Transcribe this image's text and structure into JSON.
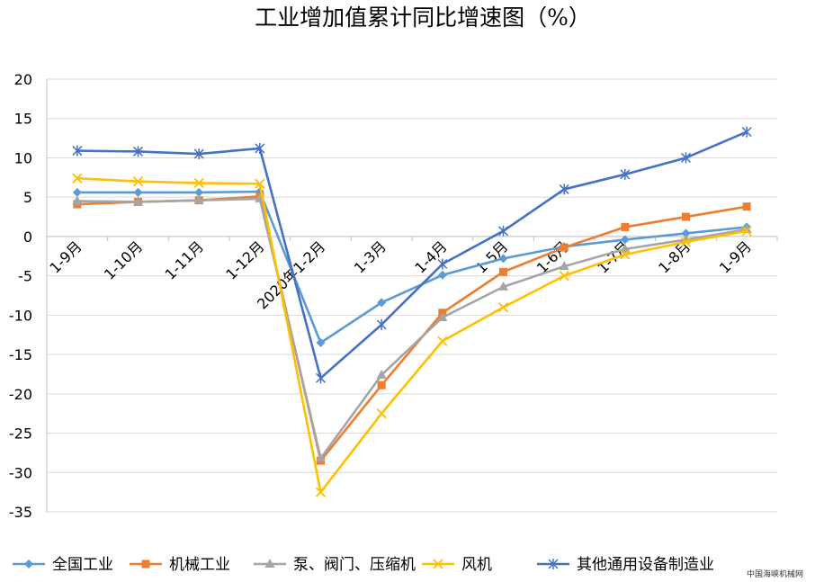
{
  "chart_data": {
    "type": "line",
    "title": "工业增加值累计同比增速图（%）",
    "categories": [
      "1-9月",
      "1-10月",
      "1-11月",
      "1-12月",
      "2020年1-2月",
      "1-3月",
      "1-4月",
      "1-5月",
      "1-6月",
      "1-7月",
      "1-8月",
      "1-9月"
    ],
    "ylim": [
      -35,
      20
    ],
    "yticks": [
      20,
      15,
      10,
      5,
      0,
      -5,
      -10,
      -15,
      -20,
      -25,
      -30,
      -35
    ],
    "grid": true,
    "legend_position": "bottom",
    "series": [
      {
        "name": "全国工业",
        "color": "#5b9bd5",
        "marker": "diamond",
        "values": [
          5.6,
          5.6,
          5.6,
          5.7,
          -13.5,
          -8.4,
          -4.9,
          -2.8,
          -1.3,
          -0.4,
          0.4,
          1.2
        ]
      },
      {
        "name": "机械工业",
        "color": "#ed7d31",
        "marker": "square",
        "values": [
          4.1,
          4.4,
          4.6,
          5.1,
          -28.5,
          -18.9,
          -9.7,
          -4.5,
          -1.4,
          1.2,
          2.5,
          3.8
        ]
      },
      {
        "name": "泵、阀门、压缩机",
        "color": "#a5a5a5",
        "marker": "triangle",
        "values": [
          4.5,
          4.4,
          4.6,
          4.8,
          -28.2,
          -17.6,
          -10.3,
          -6.4,
          -3.8,
          -1.6,
          -0.4,
          0.9
        ]
      },
      {
        "name": "风机",
        "color": "#ffc000",
        "marker": "x",
        "values": [
          7.4,
          7.0,
          6.8,
          6.7,
          -32.5,
          -22.5,
          -13.3,
          -9.0,
          -5.0,
          -2.3,
          -0.7,
          0.7
        ]
      },
      {
        "name": "其他通用设备制造业",
        "color": "#4472c4",
        "marker": "asterisk",
        "values": [
          10.9,
          10.8,
          10.5,
          11.2,
          -18.0,
          -11.2,
          -3.5,
          0.7,
          6.0,
          7.9,
          10.0,
          13.3
        ]
      }
    ]
  },
  "watermark": "中国海峡机械网"
}
